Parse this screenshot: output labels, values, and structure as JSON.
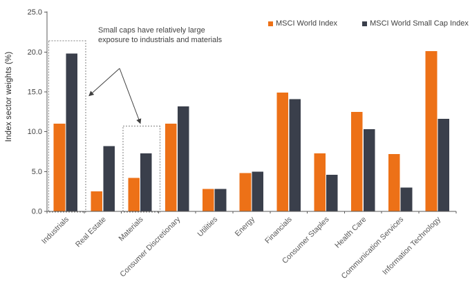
{
  "chart_data": {
    "type": "bar",
    "title": "",
    "xlabel": "",
    "ylabel": "Index sector weights (%)",
    "ylim": [
      0,
      25
    ],
    "y_ticks": [
      "0.0",
      "5.0",
      "10.0",
      "15.0",
      "20.0",
      "25.0"
    ],
    "grid": false,
    "legend_position": "top-right",
    "categories": [
      "Industrials",
      "Real Estate",
      "Materials",
      "Consumer Discretionary",
      "Utilities",
      "Energy",
      "Financials",
      "Consumer Staples",
      "Health Care",
      "Communication Services",
      "Information Technology"
    ],
    "series": [
      {
        "name": "MSCI World Index",
        "color": "#ED7117",
        "values": [
          11.0,
          2.5,
          4.2,
          11.0,
          2.8,
          4.8,
          14.9,
          7.3,
          12.5,
          7.2,
          20.1
        ]
      },
      {
        "name": "MSCI World Small Cap Index",
        "color": "#3A3F4B",
        "values": [
          19.8,
          8.2,
          7.3,
          13.2,
          2.8,
          5.0,
          14.1,
          4.6,
          10.3,
          3.0,
          11.6
        ]
      }
    ],
    "annotation": {
      "lines": [
        "Small caps have relatively large",
        "exposure to industrials and materials"
      ],
      "highlighted_categories": [
        {
          "category": "Industrials",
          "box_top": 21.4
        },
        {
          "category": "Materials",
          "box_top": 10.7
        }
      ]
    },
    "colors": {
      "axis": "#595959",
      "tick_text": "#404040",
      "category_text": "#595959",
      "annotation_text": "#3F3F3F",
      "box_dash": "#7F7F7F",
      "arrow": "#404040"
    }
  }
}
